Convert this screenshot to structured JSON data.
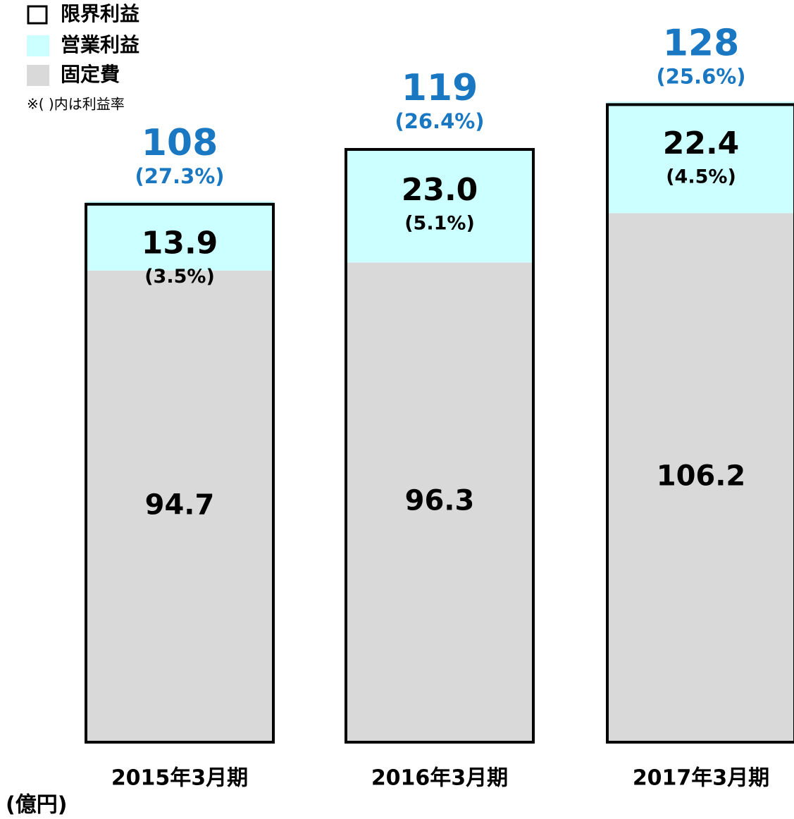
{
  "chart_data": {
    "type": "stacked_bar",
    "unit_label": "(億円)",
    "note": "※( )内は利益率",
    "categories": [
      "2015年3月期",
      "2016年3月期",
      "2017年3月期"
    ],
    "ylim": [
      0,
      149
    ],
    "series": [
      {
        "name": "固定費",
        "color": "#d9d9d9",
        "values": [
          94.7,
          96.3,
          106.2
        ]
      },
      {
        "name": "営業利益",
        "color": "#ccffff",
        "values": [
          13.9,
          23.0,
          22.4
        ],
        "value_labels": [
          "13.9",
          "23.0",
          "22.4"
        ],
        "rates": [
          3.5,
          5.1,
          4.5
        ],
        "rate_labels": [
          "(3.5%)",
          "(5.1%)",
          "(4.5%)"
        ]
      }
    ],
    "totals": {
      "name": "限界利益",
      "color": "#000000",
      "label_color": "#1a78c2",
      "values": [
        108,
        119,
        128
      ],
      "rates": [
        27.3,
        26.4,
        25.6
      ],
      "rate_labels": [
        "(27.3%)",
        "(26.4%)",
        "(25.6%)"
      ]
    }
  }
}
